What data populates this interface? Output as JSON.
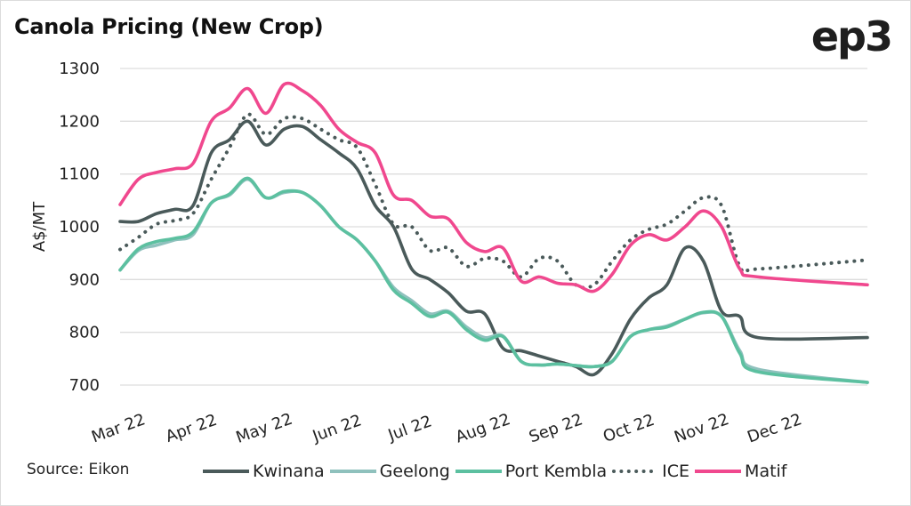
{
  "header": {
    "title": "Canola Pricing (New Crop)",
    "logo": "ep3"
  },
  "footer": {
    "source": "Source: Eikon"
  },
  "chart_data": {
    "type": "line",
    "title": "Canola Pricing (New Crop)",
    "xlabel": "",
    "ylabel": "A$/MT",
    "ylim": [
      700,
      1300
    ],
    "yticks": [
      700,
      800,
      900,
      1000,
      1100,
      1200,
      1300
    ],
    "grid": true,
    "legend_position": "bottom",
    "x_tick_labels": [
      "Mar 22",
      "Apr 22",
      "May 22",
      "Jun 22",
      "Jul 22",
      "Aug 22",
      "Sep 22",
      "Oct 22",
      "Nov 22",
      "Dec 22"
    ],
    "x_tick_positions": [
      0,
      1,
      2,
      3,
      4,
      5,
      6,
      7,
      8,
      9
    ],
    "x": [
      0,
      0.25,
      0.5,
      0.75,
      1,
      1.25,
      1.5,
      1.75,
      2,
      2.25,
      2.5,
      2.75,
      3,
      3.25,
      3.5,
      3.75,
      4,
      4.25,
      4.5,
      4.75,
      5,
      5.25,
      5.5,
      5.75,
      6,
      6.25,
      6.5,
      6.75,
      7,
      7.25,
      7.5,
      7.75,
      8,
      8.25,
      8.5,
      8.75,
      9,
      9.25,
      9.5,
      9.75,
      10.25
    ],
    "series": [
      {
        "name": "Kwinana",
        "color": "#4a5a5a",
        "style": "solid",
        "values": [
          1010,
          1010,
          1025,
          1033,
          1040,
          1140,
          1165,
          1200,
          1155,
          1185,
          1190,
          1165,
          1140,
          1110,
          1040,
          1000,
          920,
          900,
          875,
          840,
          835,
          770,
          765,
          755,
          745,
          735,
          720,
          760,
          825,
          865,
          890,
          960,
          935,
          840,
          830,
          790,
          790,
          790,
          790,
          790,
          790
        ]
      },
      {
        "name": "Geelong",
        "color": "#8fc1bd",
        "style": "solid",
        "values": [
          918,
          955,
          965,
          975,
          985,
          1045,
          1060,
          1090,
          1055,
          1065,
          1065,
          1040,
          1000,
          975,
          935,
          885,
          860,
          835,
          840,
          810,
          790,
          793,
          745,
          738,
          740,
          737,
          735,
          745,
          792,
          805,
          812,
          825,
          837,
          830,
          765,
          730,
          705,
          705,
          705,
          705,
          705
        ]
      },
      {
        "name": "Port Kembla",
        "color": "#5cc0a0",
        "style": "solid",
        "values": [
          918,
          958,
          972,
          978,
          990,
          1045,
          1062,
          1092,
          1055,
          1067,
          1065,
          1040,
          1000,
          975,
          935,
          880,
          855,
          830,
          838,
          805,
          785,
          792,
          745,
          738,
          740,
          737,
          735,
          745,
          792,
          805,
          810,
          825,
          838,
          830,
          760,
          725,
          705,
          705,
          705,
          705,
          705
        ]
      },
      {
        "name": "ICE",
        "color": "#4a5a5a",
        "style": "dotted",
        "values": [
          957,
          980,
          1005,
          1012,
          1025,
          1090,
          1150,
          1213,
          1175,
          1205,
          1205,
          1185,
          1165,
          1150,
          1080,
          1005,
          1000,
          955,
          960,
          925,
          940,
          935,
          905,
          940,
          935,
          890,
          890,
          935,
          975,
          995,
          1005,
          1030,
          1055,
          1040,
          925,
          920,
          937,
          937,
          937,
          937,
          937
        ]
      },
      {
        "name": "Matif",
        "color": "#f0488e",
        "style": "solid",
        "values": [
          1042,
          1090,
          1103,
          1110,
          1120,
          1200,
          1225,
          1262,
          1215,
          1270,
          1258,
          1230,
          1185,
          1160,
          1140,
          1060,
          1050,
          1020,
          1015,
          970,
          953,
          960,
          897,
          905,
          893,
          890,
          878,
          910,
          965,
          985,
          975,
          1000,
          1030,
          1000,
          920,
          905,
          890,
          890,
          890,
          890,
          890
        ]
      }
    ]
  }
}
